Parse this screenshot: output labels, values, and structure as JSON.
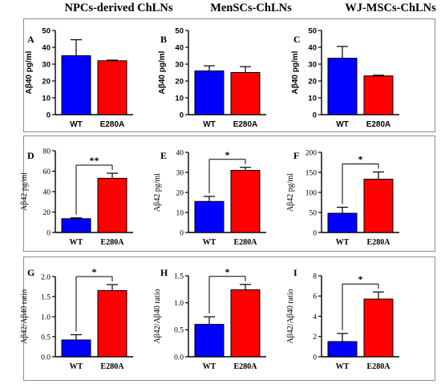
{
  "column_titles": [
    "NPCs-derived ChLNs",
    "MenSCs-ChLNs",
    "WJ-MSCs-ChLNs"
  ],
  "colors": {
    "wt": "#0000ff",
    "e280a": "#ff0000"
  },
  "chart_data": [
    {
      "id": "A",
      "type": "bar",
      "categories": [
        "WT",
        "E280A"
      ],
      "values": [
        35,
        32
      ],
      "errors": [
        9.5,
        0.4
      ],
      "ylabel": "Aβ40 pg/ml",
      "ylim": [
        0,
        50
      ],
      "yticks": [
        0,
        10,
        20,
        30,
        40,
        50
      ],
      "significance": ""
    },
    {
      "id": "B",
      "type": "bar",
      "categories": [
        "WT",
        "E280A"
      ],
      "values": [
        26,
        25
      ],
      "errors": [
        3,
        3.5
      ],
      "ylabel": "Aβ40 pg/ml",
      "ylim": [
        0,
        50
      ],
      "yticks": [
        0,
        10,
        20,
        30,
        40,
        50
      ],
      "significance": ""
    },
    {
      "id": "C",
      "type": "bar",
      "categories": [
        "WT",
        "E280A"
      ],
      "values": [
        33.5,
        23
      ],
      "errors": [
        7,
        0.4
      ],
      "ylabel": "Aβ40 pg/ml",
      "ylim": [
        0,
        50
      ],
      "yticks": [
        0,
        10,
        20,
        30,
        40,
        50
      ],
      "significance": ""
    },
    {
      "id": "D",
      "type": "bar",
      "categories": [
        "WT",
        "E280A"
      ],
      "values": [
        13.5,
        53
      ],
      "errors": [
        0.8,
        5
      ],
      "ylabel": "Aβ42 pg/ml",
      "ylim": [
        0,
        80
      ],
      "yticks": [
        0,
        20,
        40,
        60,
        80
      ],
      "significance": "**"
    },
    {
      "id": "E",
      "type": "bar",
      "categories": [
        "WT",
        "E280A"
      ],
      "values": [
        15.5,
        31
      ],
      "errors": [
        2.5,
        1.5
      ],
      "ylabel": "Aβ42 pg/ml",
      "ylim": [
        0,
        40
      ],
      "yticks": [
        0,
        10,
        20,
        30,
        40
      ],
      "significance": "*"
    },
    {
      "id": "F",
      "type": "bar",
      "categories": [
        "WT",
        "E280A"
      ],
      "values": [
        48,
        133
      ],
      "errors": [
        15,
        18
      ],
      "ylabel": "Aβ42 pg/ml",
      "ylim": [
        0,
        200
      ],
      "yticks": [
        0,
        50,
        100,
        150,
        200
      ],
      "significance": "*"
    },
    {
      "id": "G",
      "type": "bar",
      "categories": [
        "WT",
        "E280A"
      ],
      "values": [
        0.42,
        1.65
      ],
      "errors": [
        0.13,
        0.15
      ],
      "ylabel": "Aβ42/Aβ40 ratio",
      "ylim": [
        0,
        2.0
      ],
      "yticks": [
        "0.0",
        "0.5",
        "1.0",
        "1.5",
        "2.0"
      ],
      "significance": "*"
    },
    {
      "id": "H",
      "type": "bar",
      "categories": [
        "WT",
        "E280A"
      ],
      "values": [
        0.6,
        1.24
      ],
      "errors": [
        0.14,
        0.1
      ],
      "ylabel": "Aβ42/Aβ40 ratio",
      "ylim": [
        0,
        1.5
      ],
      "yticks": [
        "0.0",
        "0.5",
        "1.0",
        "1.5"
      ],
      "significance": "*"
    },
    {
      "id": "I",
      "type": "bar",
      "categories": [
        "WT",
        "E280A"
      ],
      "values": [
        1.5,
        5.7
      ],
      "errors": [
        0.8,
        0.7
      ],
      "ylabel": "Aβ42/Aβ40 ratio",
      "ylim": [
        0,
        8
      ],
      "yticks": [
        0,
        2,
        4,
        6,
        8
      ],
      "significance": "*"
    }
  ]
}
